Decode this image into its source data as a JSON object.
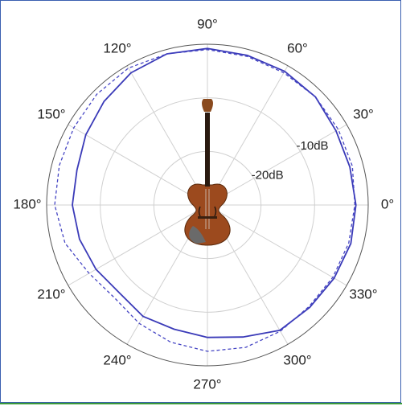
{
  "chart_data": {
    "type": "polar",
    "theta": [
      0,
      15,
      30,
      45,
      60,
      75,
      90,
      105,
      120,
      135,
      150,
      165,
      180,
      195,
      210,
      225,
      240,
      255,
      270,
      285,
      300,
      315,
      330,
      345
    ],
    "series": [
      {
        "color": "#3a3ab8",
        "dash": false,
        "values": [
          -2.3,
          -2.5,
          -2.3,
          -1.5,
          -1.2,
          -1.1,
          -0.8,
          -0.8,
          -1.5,
          -2.7,
          -3.8,
          -4.8,
          -4.8,
          -5.3,
          -6,
          -6.8,
          -6,
          -6,
          -5.3,
          -4.5,
          -3,
          -3,
          -2.7,
          -2.3
        ]
      },
      {
        "color": "#4646c4",
        "dash": true,
        "values": [
          -2.5,
          -2,
          -1.8,
          -1.5,
          -1.5,
          -1.3,
          -1,
          -0.8,
          -0.5,
          -0.8,
          -1.2,
          -1.4,
          -1.5,
          -2.5,
          -4.5,
          -5.5,
          -4.5,
          -3.5,
          -2.7,
          -2.5,
          -2.8,
          -3.2,
          -3,
          -2.7
        ]
      }
    ],
    "rlim": [
      -30,
      0
    ],
    "rticks": [
      {
        "value": -10,
        "label": "-10dB"
      },
      {
        "value": -20,
        "label": "-20dB"
      }
    ],
    "thetaticks": [
      {
        "value": 0,
        "label": "0°"
      },
      {
        "value": 30,
        "label": "30°"
      },
      {
        "value": 60,
        "label": "60°"
      },
      {
        "value": 90,
        "label": "90°"
      },
      {
        "value": 120,
        "label": "120°"
      },
      {
        "value": 150,
        "label": "150°"
      },
      {
        "value": 180,
        "label": "180°"
      },
      {
        "value": 210,
        "label": "210°"
      },
      {
        "value": 240,
        "label": "240°"
      },
      {
        "value": 270,
        "label": "270°"
      },
      {
        "value": 300,
        "label": "300°"
      },
      {
        "value": 330,
        "label": "330°"
      }
    ],
    "grid": true
  }
}
